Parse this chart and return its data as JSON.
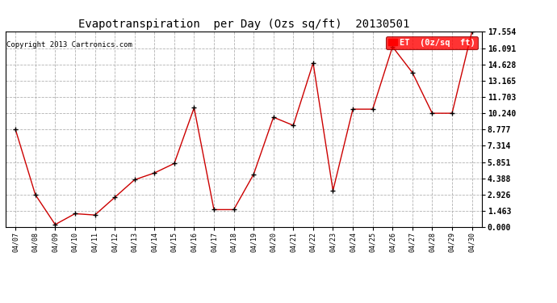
{
  "title": "Evapotranspiration  per Day (Ozs sq/ft)  20130501",
  "copyright": "Copyright 2013 Cartronics.com",
  "legend_label": "ET  (0z/sq  ft)",
  "dates": [
    "04/07",
    "04/08",
    "04/09",
    "04/10",
    "04/11",
    "04/12",
    "04/13",
    "04/14",
    "04/15",
    "04/16",
    "04/17",
    "04/18",
    "04/19",
    "04/20",
    "04/21",
    "04/22",
    "04/23",
    "04/24",
    "04/25",
    "04/26",
    "04/27",
    "04/28",
    "04/29",
    "04/30"
  ],
  "values": [
    8.777,
    2.926,
    0.244,
    1.22,
    1.098,
    2.682,
    4.266,
    4.876,
    5.729,
    10.728,
    1.585,
    1.585,
    4.754,
    9.882,
    9.15,
    14.75,
    3.293,
    10.606,
    10.606,
    16.213,
    13.897,
    10.24,
    10.24,
    17.554
  ],
  "line_color": "#cc0000",
  "marker": "+",
  "marker_color": "#000000",
  "bg_color": "#ffffff",
  "grid_color": "#aaaaaa",
  "yticks": [
    0.0,
    1.463,
    2.926,
    4.388,
    5.851,
    7.314,
    8.777,
    10.24,
    11.703,
    13.165,
    14.628,
    16.091,
    17.554
  ],
  "ylim": [
    0.0,
    17.554
  ],
  "title_fontsize": 10,
  "copyright_fontsize": 6.5,
  "legend_fontsize": 7.5,
  "xtick_fontsize": 6,
  "ytick_fontsize": 7
}
